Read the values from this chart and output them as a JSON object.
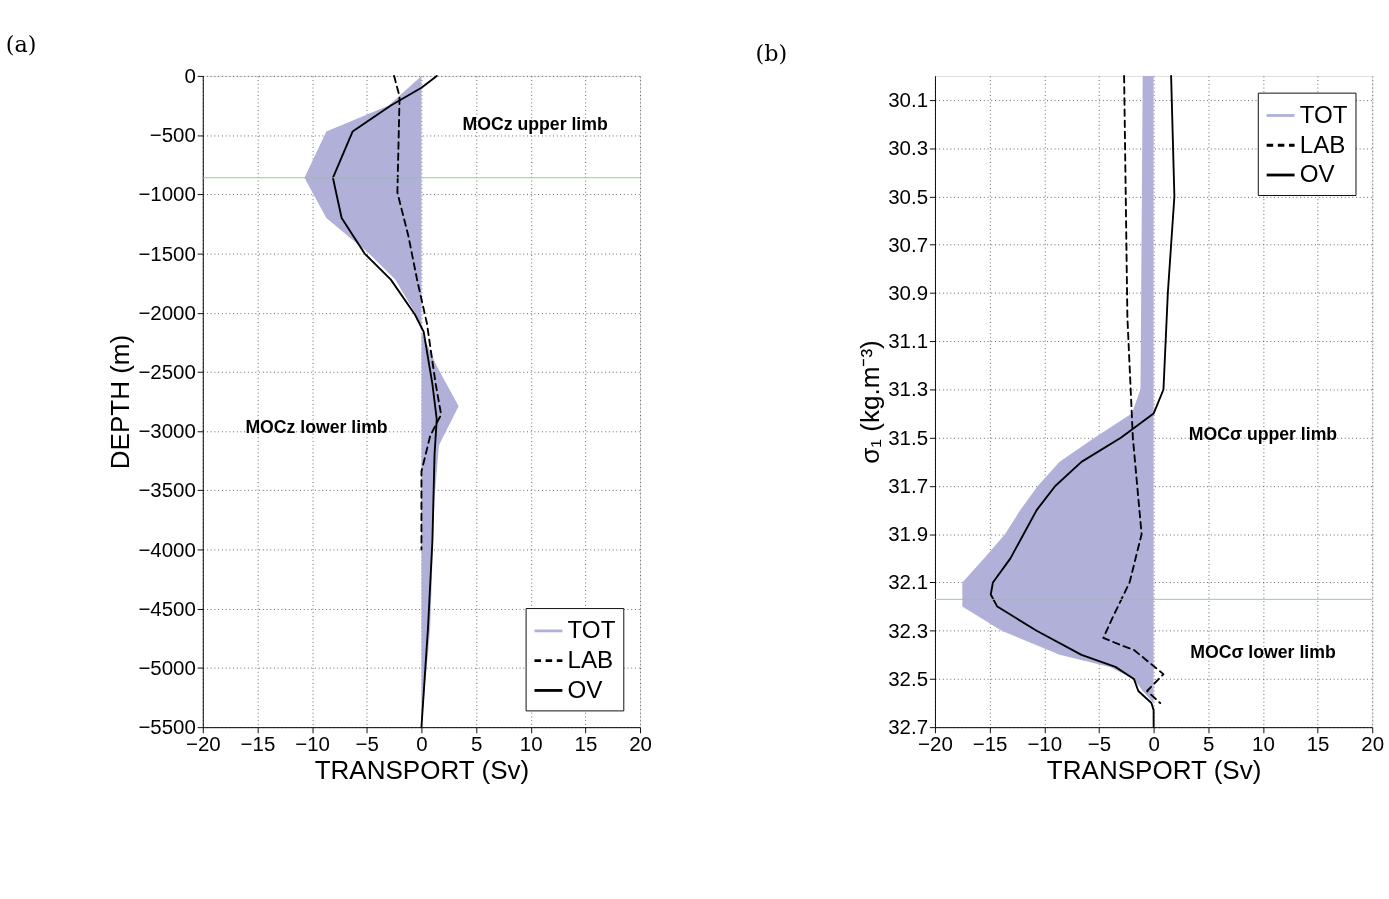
{
  "chart_data": [
    {
      "type": "line",
      "title": "(a)",
      "orientation": "horizontal",
      "xlabel": "TRANSPORT (Sv)",
      "ylabel": "DEPTH (m)",
      "xlim": [
        -20,
        20
      ],
      "xticks": [
        -20,
        -15,
        -10,
        -5,
        0,
        5,
        10,
        15,
        20
      ],
      "ylim": [
        -5500,
        0
      ],
      "yticks": [
        0,
        -500,
        -1000,
        -1500,
        -2000,
        -2500,
        -3000,
        -3500,
        -4000,
        -4500,
        -5000,
        -5500
      ],
      "grid": true,
      "legend": "bottom right",
      "series": [
        {
          "name": "TOT",
          "type": "area",
          "color": "#b0b0d8",
          "x": [
            0,
            -250,
            -470,
            -860,
            -1200,
            -1500,
            -1720,
            -2015,
            -2160,
            -2450,
            -2790,
            -3120,
            -3560,
            -4660,
            -5500
          ],
          "values": [
            0,
            -3,
            -8.7,
            -10.7,
            -8.7,
            -4.8,
            -2.4,
            -0.5,
            0,
            1.4,
            3.4,
            1.6,
            1.2,
            0.8,
            0
          ]
        },
        {
          "name": "LAB",
          "line_style": "dashed",
          "color": "#000000",
          "x": [
            0,
            -175,
            -985,
            -1350,
            -1720,
            -2090,
            -2600,
            -2860,
            -3040,
            -3340,
            -4000
          ],
          "values": [
            -2.5,
            -2.0,
            -2.2,
            -1.2,
            -0.4,
            0.5,
            1.3,
            1.8,
            0.8,
            0,
            0
          ]
        },
        {
          "name": "OV",
          "line_style": "solid",
          "color": "#000000",
          "x": [
            0,
            -100,
            -250,
            -470,
            -860,
            -1200,
            -1500,
            -1720,
            -2015,
            -2160,
            -2600,
            -2900,
            -3190,
            -3930,
            -4660,
            -5500
          ],
          "values": [
            1.4,
            0,
            -2.8,
            -6.3,
            -8.1,
            -7.3,
            -5.2,
            -2.8,
            -0.6,
            0.2,
            1,
            1.4,
            1.2,
            1.0,
            0.6,
            0
          ]
        }
      ],
      "ref_lines": [
        {
          "axis": "y",
          "value": -860,
          "label": null,
          "color": "#8fc98f"
        }
      ],
      "annotations": [
        "MOCz upper limb",
        "MOCz lower limb"
      ]
    },
    {
      "type": "line",
      "title": "(b)",
      "orientation": "horizontal",
      "xlabel": "TRANSPORT (Sv)",
      "ylabel": "σ₁ (kg.m⁻³)",
      "xlim": [
        -20,
        20
      ],
      "xticks": [
        -20,
        -15,
        -10,
        -5,
        0,
        5,
        10,
        15,
        20
      ],
      "ylim": [
        32.7,
        30.0
      ],
      "yticks": [
        {
          "value": 30.1,
          "label": "30.1"
        },
        {
          "value": 30.3,
          "label": "30.3"
        },
        {
          "value": 30.5,
          "label": "30.5"
        },
        {
          "value": 30.7,
          "label": "30.7"
        },
        {
          "value": 30.9,
          "label": "30.9"
        },
        {
          "value": 31.1,
          "label": "31.1"
        },
        {
          "value": 31.3,
          "label": "31.3"
        },
        {
          "value": 31.5,
          "label": "31.5"
        },
        {
          "value": 31.7,
          "label": "31.7"
        },
        {
          "value": 31.9,
          "label": "31.9"
        },
        {
          "value": 32.1,
          "label": "32.1"
        },
        {
          "value": 32.3,
          "label": "32.3"
        },
        {
          "value": 32.5,
          "label": "32.5"
        },
        {
          "value": 32.7,
          "label": "32.7"
        }
      ],
      "grid": true,
      "legend": "top right",
      "series": [
        {
          "name": "TOT",
          "type": "area",
          "color": "#b0b0d8",
          "x": [
            30.0,
            31.3,
            31.4,
            31.5,
            31.6,
            31.7,
            31.8,
            31.9,
            32.0,
            32.1,
            32.2,
            32.3,
            32.4,
            32.45,
            32.5,
            32.55,
            32.6,
            32.7
          ],
          "values": [
            -1.0,
            -1.2,
            -2,
            -5.4,
            -8.6,
            -10.6,
            -12.2,
            -13.6,
            -15.5,
            -17.5,
            -17.5,
            -13.9,
            -8.6,
            -4,
            -1.8,
            -1,
            0,
            0
          ]
        },
        {
          "name": "LAB",
          "line_style": "dashed",
          "color": "#000000",
          "x": [
            30.0,
            31.0,
            31.5,
            31.9,
            32.1,
            32.25,
            32.33,
            32.36,
            32.38,
            32.48,
            32.55,
            32.6
          ],
          "values": [
            -2.7,
            -2.4,
            -1.9,
            -1.1,
            -2.2,
            -3.8,
            -4.6,
            -3,
            -1.8,
            0.9,
            -0.6,
            0.6
          ]
        },
        {
          "name": "OV",
          "line_style": "solid",
          "color": "#000000",
          "x": [
            30.0,
            30.5,
            30.9,
            31.3,
            31.4,
            31.5,
            31.6,
            31.7,
            31.8,
            31.9,
            32.0,
            32.1,
            32.15,
            32.2,
            32.3,
            32.4,
            32.45,
            32.5,
            32.55,
            32.6,
            32.63,
            32.7
          ],
          "values": [
            1.6,
            1.9,
            1.3,
            0.9,
            0,
            -3,
            -6.6,
            -9,
            -10.7,
            -11.9,
            -13.1,
            -14.7,
            -14.9,
            -14.3,
            -10.7,
            -6.6,
            -3.5,
            -1.8,
            -1.4,
            -0.2,
            0,
            0
          ]
        }
      ],
      "ref_lines": [
        {
          "axis": "y",
          "value": 32.17,
          "label": null,
          "color": "#8fc98f"
        }
      ],
      "annotations": [
        "MOCσ upper limb",
        "MOCσ lower limb"
      ]
    }
  ]
}
